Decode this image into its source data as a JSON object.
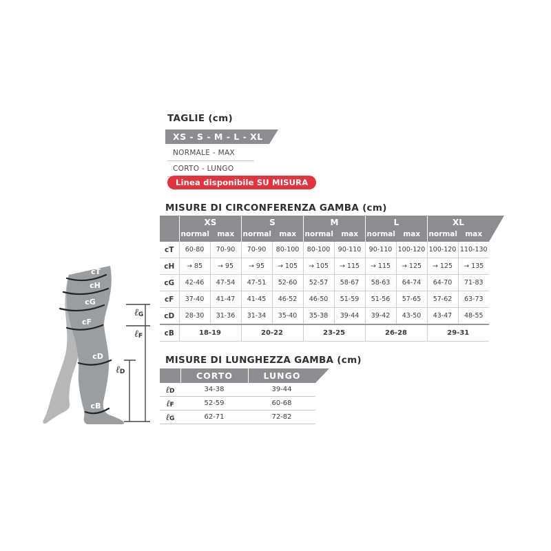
{
  "taglie": {
    "title": "TAGLIE (cm)",
    "sizes_banner": "XS - S - M - L - XL",
    "options": [
      "NORMALE - MAX",
      "CORTO - LUNGO"
    ],
    "badge": "Linea disponibile SU MISURA"
  },
  "circumference_table": {
    "title": "MISURE DI CIRCONFERENZA GAMBA (cm)",
    "size_groups": [
      "XS",
      "S",
      "M",
      "L",
      "XL"
    ],
    "sub_headers": [
      "normal",
      "max"
    ],
    "rows": [
      {
        "label": "cT",
        "values": [
          "60-80",
          "70-90",
          "70-90",
          "80-100",
          "80-100",
          "90-110",
          "90-110",
          "100-120",
          "100-120",
          "110-130"
        ]
      },
      {
        "label": "cH",
        "values": [
          "→ 85",
          "→ 95",
          "→ 95",
          "→ 105",
          "→ 105",
          "→ 115",
          "→ 115",
          "→ 125",
          "→ 125",
          "→ 135"
        ]
      },
      {
        "label": "cG",
        "values": [
          "42-46",
          "47-54",
          "47-51",
          "52-60",
          "52-57",
          "58-67",
          "58-63",
          "64-74",
          "64-70",
          "71-83"
        ]
      },
      {
        "label": "cF",
        "values": [
          "37-40",
          "41-47",
          "41-45",
          "46-52",
          "46-50",
          "51-59",
          "51-56",
          "57-65",
          "57-62",
          "63-73"
        ]
      },
      {
        "label": "cD",
        "values": [
          "28-30",
          "31-36",
          "31-34",
          "35-40",
          "35-38",
          "39-44",
          "39-42",
          "43-50",
          "43-47",
          "48-55"
        ]
      }
    ],
    "span_row": {
      "label": "cB",
      "values": [
        "18-19",
        "20-22",
        "23-25",
        "26-28",
        "29-31"
      ]
    }
  },
  "length_table": {
    "title": "MISURE DI LUNGHEZZA GAMBA (cm)",
    "columns": [
      "CORTO",
      "LUNGO"
    ],
    "rows": [
      {
        "label_script": "ℓ",
        "label_sub": "D",
        "values": [
          "34-38",
          "39-44"
        ]
      },
      {
        "label_script": "ℓ",
        "label_sub": "F",
        "values": [
          "52-59",
          "60-68"
        ]
      },
      {
        "label_script": "ℓ",
        "label_sub": "G",
        "values": [
          "62-71",
          "72-82"
        ]
      }
    ]
  },
  "diagram": {
    "bands": [
      "cT",
      "cH",
      "cG",
      "cF",
      "cD",
      "cB"
    ],
    "length_labels": [
      {
        "script": "ℓ",
        "sub": "G"
      },
      {
        "script": "ℓ",
        "sub": "F"
      },
      {
        "script": "ℓ",
        "sub": "D"
      }
    ]
  },
  "colors": {
    "header_gray": "#8d8d91",
    "badge_red": "#e2343f",
    "leg_front": "#9b9ea1",
    "leg_back": "#b5b7b9",
    "band_stroke": "#232323",
    "grid_line": "#cccccc"
  }
}
